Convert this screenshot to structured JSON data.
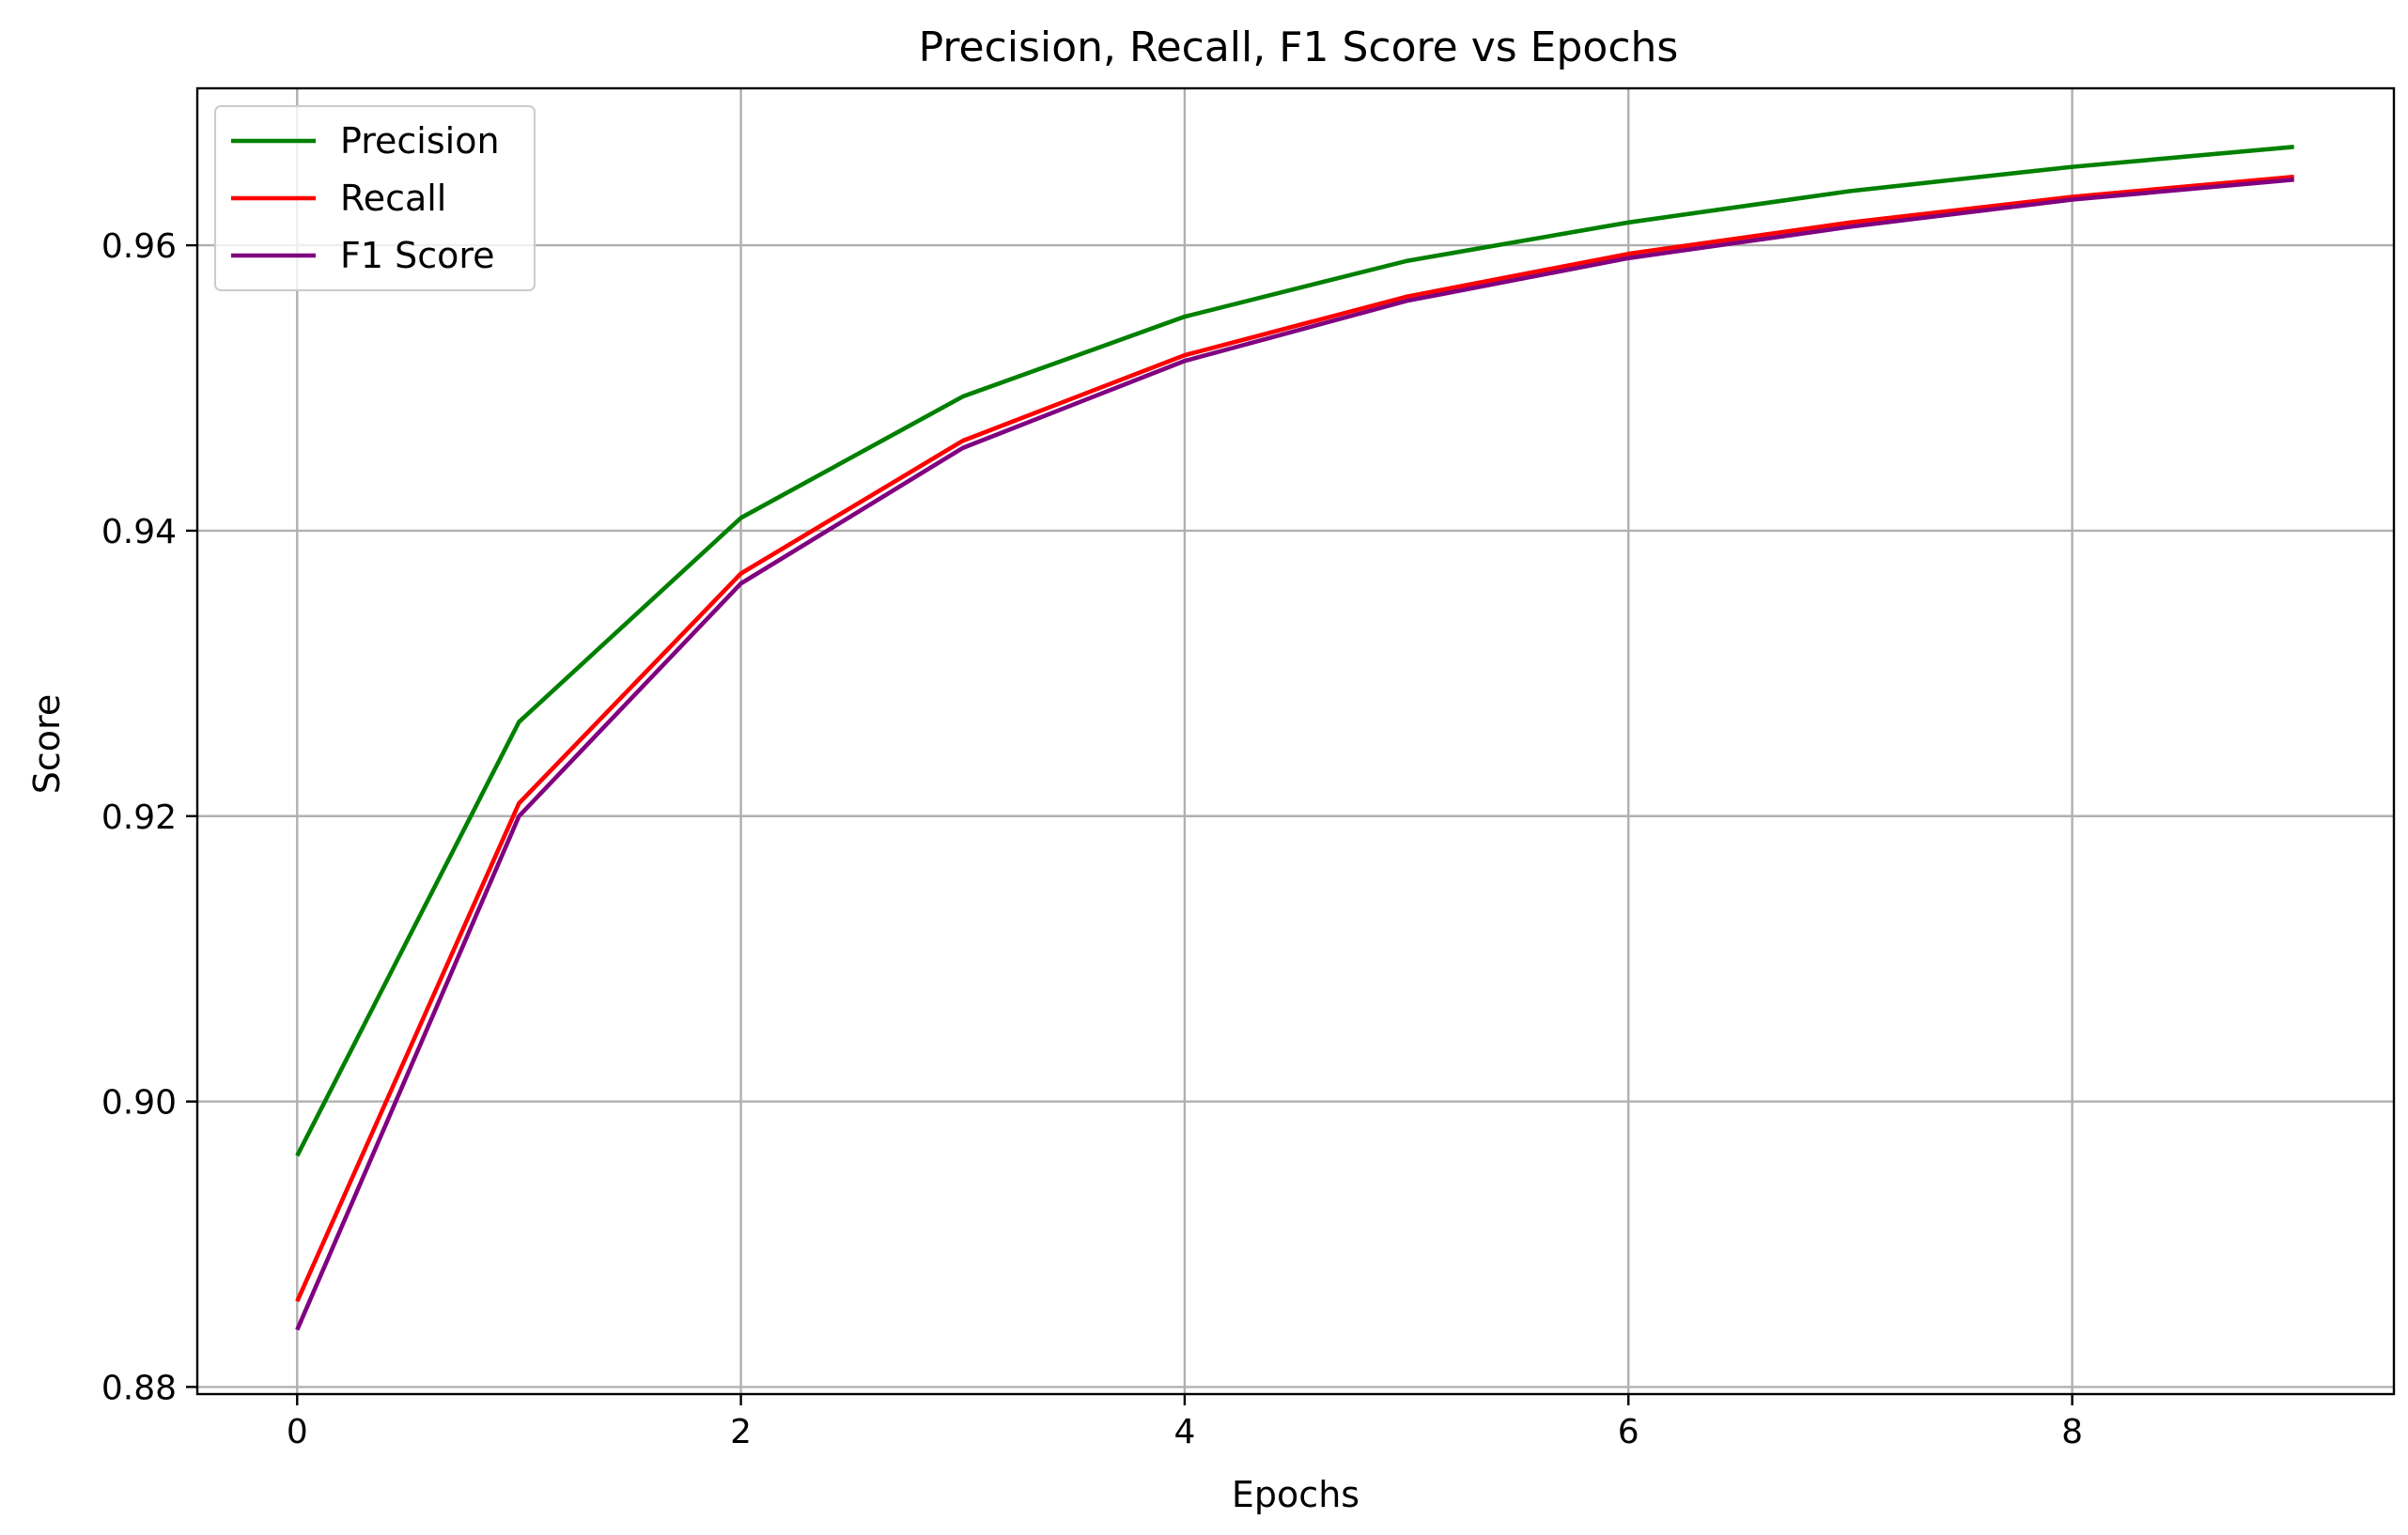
{
  "chart_data": {
    "type": "line",
    "title": "Precision, Recall, F1 Score vs Epochs",
    "xlabel": "Epochs",
    "ylabel": "Score",
    "x": [
      0,
      1,
      2,
      3,
      4,
      5,
      6,
      7,
      8,
      9
    ],
    "xlim": [
      -0.45,
      9.45
    ],
    "ylim": [
      0.8795,
      0.971
    ],
    "xticks": [
      0,
      2,
      4,
      6,
      8
    ],
    "xtick_labels": [
      "0",
      "2",
      "4",
      "6",
      "8"
    ],
    "yticks": [
      0.88,
      0.9,
      0.92,
      0.94,
      0.96
    ],
    "ytick_labels": [
      "0.88",
      "0.90",
      "0.92",
      "0.94",
      "0.96"
    ],
    "grid": true,
    "legend_position": "top-left",
    "series": [
      {
        "name": "Precision",
        "color": "#008000",
        "values": [
          0.8962,
          0.9266,
          0.9409,
          0.9494,
          0.955,
          0.9589,
          0.9616,
          0.9638,
          0.9655,
          0.9669
        ]
      },
      {
        "name": "Recall",
        "color": "#ff0000",
        "values": [
          0.886,
          0.9209,
          0.937,
          0.9463,
          0.9523,
          0.9564,
          0.9594,
          0.9616,
          0.9634,
          0.9648
        ]
      },
      {
        "name": "F1 Score",
        "color": "#800080",
        "values": [
          0.884,
          0.92,
          0.9363,
          0.9458,
          0.9519,
          0.9561,
          0.9591,
          0.9613,
          0.9632,
          0.9646
        ]
      }
    ]
  }
}
